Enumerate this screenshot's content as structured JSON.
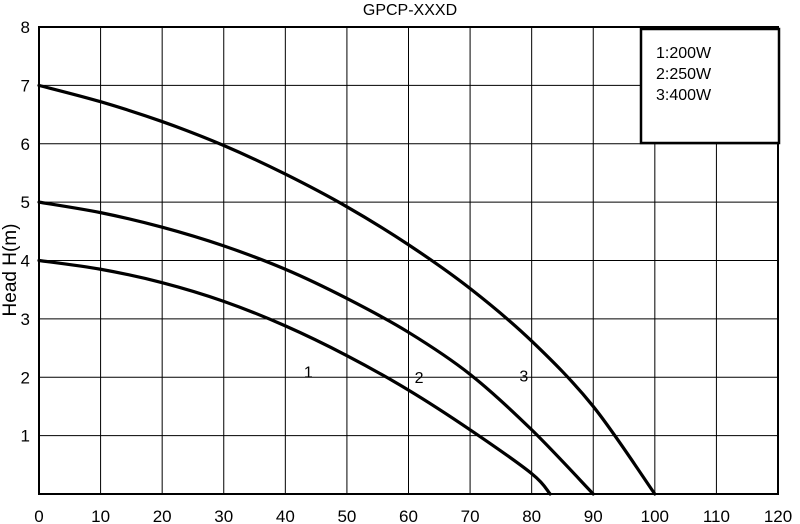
{
  "chart_data": {
    "type": "line",
    "title": "GPCP-XXXD",
    "xlabel": "",
    "ylabel": "Head H(m)",
    "xlim": [
      0,
      120
    ],
    "ylim": [
      0,
      8
    ],
    "xticks": [
      0,
      10,
      20,
      30,
      40,
      50,
      60,
      70,
      80,
      90,
      100,
      110,
      120
    ],
    "yticks": [
      1,
      2,
      3,
      4,
      5,
      6,
      7,
      8
    ],
    "grid": true,
    "legend": {
      "placement": "top-right",
      "entries": [
        "1:200W",
        "2:250W",
        "3:400W"
      ]
    },
    "series": [
      {
        "label": "1",
        "x": [
          0,
          10,
          20,
          30,
          40,
          50,
          60,
          70,
          80,
          83
        ],
        "y": [
          4.0,
          3.85,
          3.62,
          3.3,
          2.88,
          2.37,
          1.78,
          1.1,
          0.35,
          0
        ]
      },
      {
        "label": "2",
        "x": [
          0,
          10,
          20,
          30,
          40,
          50,
          60,
          70,
          80,
          90
        ],
        "y": [
          5.0,
          4.82,
          4.57,
          4.25,
          3.85,
          3.35,
          2.77,
          2.05,
          1.1,
          0
        ]
      },
      {
        "label": "3",
        "x": [
          0,
          10,
          20,
          30,
          40,
          50,
          60,
          70,
          80,
          90,
          100
        ],
        "y": [
          7.0,
          6.72,
          6.38,
          5.97,
          5.48,
          4.92,
          4.27,
          3.52,
          2.62,
          1.5,
          0
        ]
      }
    ]
  }
}
